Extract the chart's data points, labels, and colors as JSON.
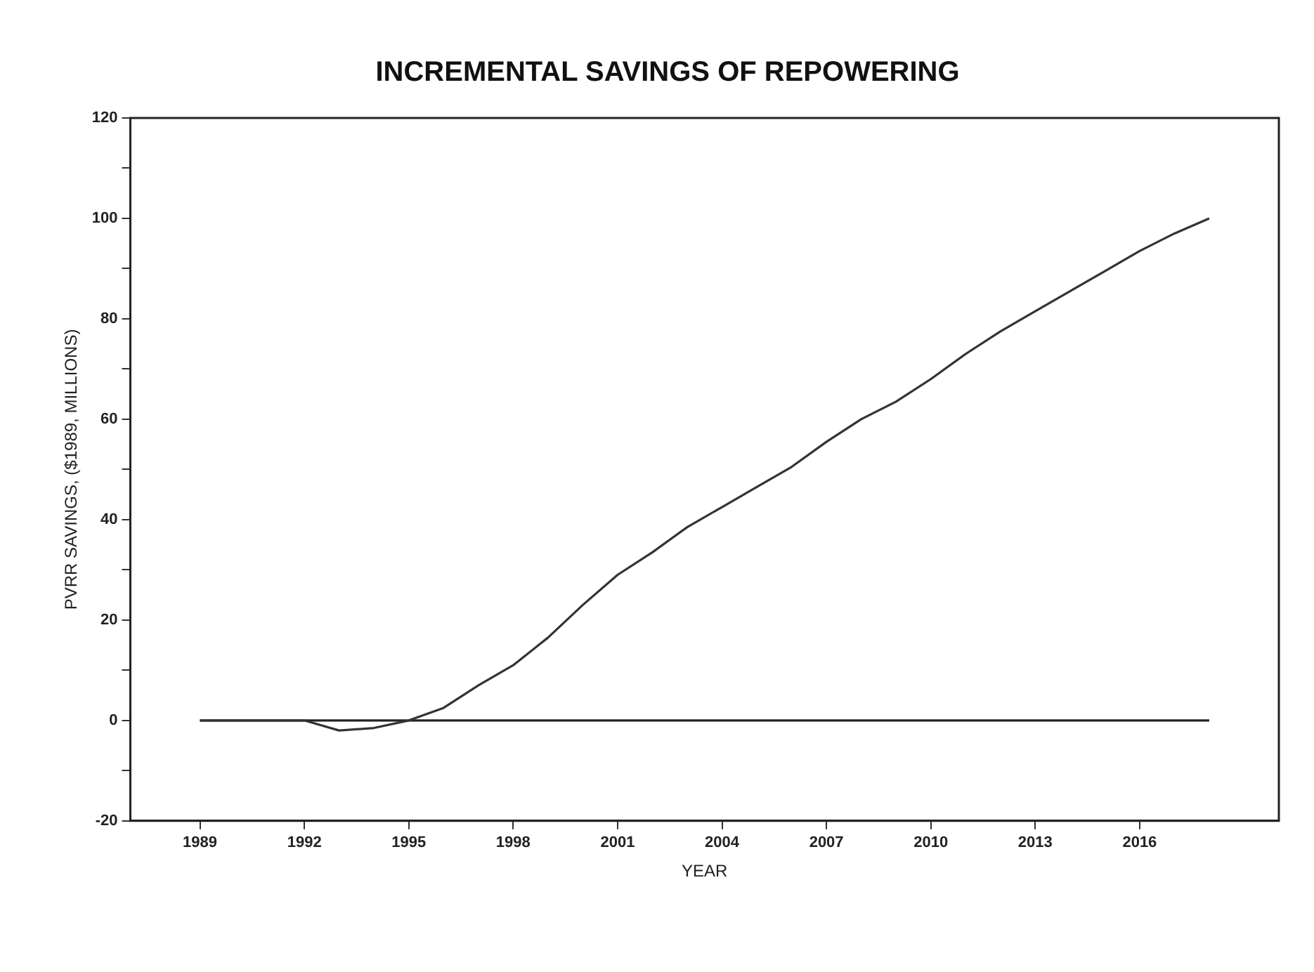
{
  "chart_data": {
    "type": "line",
    "title": "INCREMENTAL SAVINGS OF REPOWERING",
    "xlabel": "YEAR",
    "ylabel": "PVRR SAVINGS, ($1989, MILLIONS)",
    "xlim": [
      1987,
      2020
    ],
    "xticks": [
      1989,
      1992,
      1995,
      1998,
      2001,
      2004,
      2007,
      2010,
      2013,
      2016
    ],
    "ylim": [
      -20,
      120
    ],
    "yticks": [
      -20,
      {
        "value": -10,
        "label": null
      },
      0,
      {
        "value": 10,
        "label": null
      },
      20,
      {
        "value": 30,
        "label": null
      },
      40,
      {
        "value": 50,
        "label": null
      },
      60,
      {
        "value": 70,
        "label": null
      },
      80,
      {
        "value": 90,
        "label": null
      },
      100,
      {
        "value": 110,
        "label": null
      },
      120
    ],
    "grid": false,
    "legend": false,
    "marker": "none",
    "line_style": "solid",
    "series": [
      {
        "color": "#333333",
        "x": [
          1989,
          1990,
          1991,
          1992,
          1993,
          1994,
          1995,
          1996,
          1997,
          1998,
          1999,
          2000,
          2001,
          2002,
          2003,
          2004,
          2005,
          2006,
          2007,
          2008,
          2009,
          2010,
          2011,
          2012,
          2013,
          2014,
          2015,
          2016,
          2017,
          2018
        ],
        "values": [
          0,
          0,
          0,
          0,
          -2,
          -1.5,
          0,
          2.5,
          7,
          11,
          16.5,
          23,
          29,
          33.5,
          38.5,
          42.5,
          46.5,
          50.5,
          55.5,
          60,
          63.5,
          68,
          73,
          77.5,
          81.5,
          85.5,
          89.5,
          93.5,
          97,
          100
        ]
      },
      {
        "color": "#222222",
        "x": [
          1989,
          2018
        ],
        "values": [
          0,
          0
        ]
      }
    ]
  }
}
